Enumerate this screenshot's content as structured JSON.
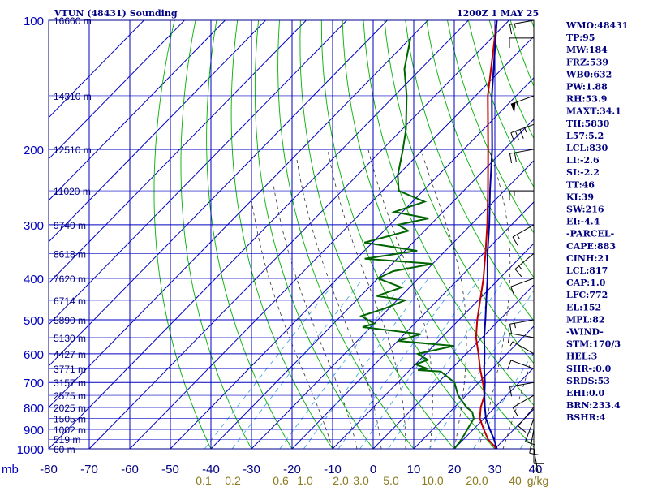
{
  "header": {
    "station": "VTUN (48431) Sounding",
    "time": "1200Z  1 MAY 25"
  },
  "chart_data": {
    "type": "skew-t log-p",
    "title": "VTUN (48431) Sounding",
    "pressure_axis": {
      "unit_label": "mb",
      "ticks": [
        100,
        200,
        300,
        400,
        500,
        600,
        700,
        800,
        900,
        1000
      ],
      "ylim": [
        1000,
        100
      ],
      "scale": "log"
    },
    "temperature_axis": {
      "ticks": [
        -80,
        -70,
        -60,
        -50,
        -40,
        -30,
        -20,
        -10,
        0,
        10,
        20,
        30,
        40
      ],
      "skewed": true
    },
    "height_labels": [
      {
        "p": 100,
        "label": "16660 m"
      },
      {
        "p": 150,
        "label": "14310 m"
      },
      {
        "p": 200,
        "label": "12510 m"
      },
      {
        "p": 250,
        "label": "11020 m"
      },
      {
        "p": 300,
        "label": "9740 m"
      },
      {
        "p": 350,
        "label": "8618 m"
      },
      {
        "p": 400,
        "label": "7620 m"
      },
      {
        "p": 450,
        "label": "6714 m"
      },
      {
        "p": 500,
        "label": "5890 m"
      },
      {
        "p": 550,
        "label": "5130 m"
      },
      {
        "p": 600,
        "label": "4427 m"
      },
      {
        "p": 650,
        "label": "3771 m"
      },
      {
        "p": 700,
        "label": "3157 m"
      },
      {
        "p": 750,
        "label": "2575 m"
      },
      {
        "p": 800,
        "label": "2025 m"
      },
      {
        "p": 850,
        "label": "1505 m"
      },
      {
        "p": 900,
        "label": "1002 m"
      },
      {
        "p": 950,
        "label": "519 m"
      },
      {
        "p": 1000,
        "label": "60 m"
      }
    ],
    "mixing_ratio_labels": [
      "0.1",
      "0.2",
      "0.6",
      "1.0",
      "2.0",
      "3.0",
      "5.0",
      "10.0",
      "20.0",
      "40",
      "g/kg"
    ],
    "series": [
      {
        "type": "temperature",
        "color": "#c00000",
        "points": [
          [
            1000,
            30.5
          ],
          [
            950,
            26
          ],
          [
            900,
            22.5
          ],
          [
            850,
            19
          ],
          [
            800,
            16.5
          ],
          [
            750,
            14.5
          ],
          [
            700,
            11
          ],
          [
            650,
            7
          ],
          [
            600,
            3
          ],
          [
            550,
            -1.5
          ],
          [
            500,
            -5.5
          ],
          [
            450,
            -9.5
          ],
          [
            400,
            -14
          ],
          [
            350,
            -19.5
          ],
          [
            300,
            -26
          ],
          [
            250,
            -34
          ],
          [
            200,
            -44
          ],
          [
            150,
            -57
          ],
          [
            100,
            -73
          ]
        ]
      },
      {
        "type": "dewpoint",
        "color": "#006400",
        "points": [
          [
            1000,
            20
          ],
          [
            950,
            19.5
          ],
          [
            900,
            18.5
          ],
          [
            850,
            17.5
          ],
          [
            820,
            15.5
          ],
          [
            800,
            13
          ],
          [
            750,
            8
          ],
          [
            700,
            4
          ],
          [
            660,
            -2
          ],
          [
            655,
            -8
          ],
          [
            650,
            -6
          ],
          [
            635,
            -10
          ],
          [
            620,
            -8
          ],
          [
            600,
            -12
          ],
          [
            575,
            -5
          ],
          [
            560,
            -20
          ],
          [
            540,
            -16
          ],
          [
            520,
            -32
          ],
          [
            510,
            -30
          ],
          [
            490,
            -35
          ],
          [
            470,
            -31
          ],
          [
            450,
            -28
          ],
          [
            440,
            -36
          ],
          [
            420,
            -32
          ],
          [
            400,
            -40
          ],
          [
            385,
            -38
          ],
          [
            370,
            -30
          ],
          [
            360,
            -48
          ],
          [
            345,
            -37
          ],
          [
            330,
            -52
          ],
          [
            310,
            -44
          ],
          [
            300,
            -48
          ],
          [
            290,
            -42
          ],
          [
            280,
            -52
          ],
          [
            265,
            -47
          ],
          [
            250,
            -56
          ],
          [
            230,
            -60
          ],
          [
            200,
            -65
          ],
          [
            180,
            -69
          ],
          [
            150,
            -77
          ],
          [
            130,
            -84
          ],
          [
            110,
            -90
          ]
        ]
      },
      {
        "type": "parcel",
        "color": "#0000a0",
        "points": [
          [
            1000,
            30.5
          ],
          [
            950,
            27.5
          ],
          [
            900,
            24
          ],
          [
            850,
            20.5
          ],
          [
            800,
            17.5
          ],
          [
            750,
            14.5
          ],
          [
            700,
            11.5
          ],
          [
            650,
            8
          ],
          [
            600,
            4.5
          ],
          [
            550,
            0.5
          ],
          [
            500,
            -3.5
          ],
          [
            450,
            -8
          ],
          [
            400,
            -13
          ],
          [
            350,
            -19
          ],
          [
            300,
            -25.5
          ],
          [
            250,
            -33.5
          ],
          [
            200,
            -43
          ],
          [
            150,
            -56
          ],
          [
            100,
            -73
          ]
        ]
      }
    ],
    "wind_barbs": [
      {
        "p": 100,
        "dir": 260,
        "kt": 15
      },
      {
        "p": 110,
        "dir": 270,
        "kt": 10
      },
      {
        "p": 150,
        "dir": 250,
        "kt": 55
      },
      {
        "p": 175,
        "dir": 250,
        "kt": 35
      },
      {
        "p": 200,
        "dir": 260,
        "kt": 20
      },
      {
        "p": 250,
        "dir": 270,
        "kt": 15
      },
      {
        "p": 300,
        "dir": 240,
        "kt": 15
      },
      {
        "p": 350,
        "dir": 230,
        "kt": 15
      },
      {
        "p": 400,
        "dir": 250,
        "kt": 10
      },
      {
        "p": 500,
        "dir": 260,
        "kt": 15
      },
      {
        "p": 550,
        "dir": 280,
        "kt": 10
      },
      {
        "p": 600,
        "dir": 300,
        "kt": 5
      },
      {
        "p": 650,
        "dir": 290,
        "kt": 10
      },
      {
        "p": 700,
        "dir": 260,
        "kt": 10
      },
      {
        "p": 750,
        "dir": 240,
        "kt": 10
      },
      {
        "p": 800,
        "dir": 220,
        "kt": 10
      },
      {
        "p": 850,
        "dir": 200,
        "kt": 10
      },
      {
        "p": 900,
        "dir": 190,
        "kt": 15
      },
      {
        "p": 950,
        "dir": 180,
        "kt": 10
      },
      {
        "p": 1000,
        "dir": 170,
        "kt": 5
      }
    ]
  },
  "indices": [
    "WMO:48431",
    "TP:95",
    "MW:184",
    "FRZ:539",
    "WB0:632",
    "PW:1.88",
    "RH:53.9",
    "MAXT:34.1",
    "TH:5830",
    "L57:5.2",
    "LCL:830",
    "LI:-2.6",
    "SI:-2.2",
    "TT:46",
    "KI:39",
    "SW:216",
    "EI:-4.4",
    "-PARCEL-",
    "CAPE:883",
    "CINH:21",
    "LCL:817",
    "CAP:1.0",
    "LFC:772",
    "EL:152",
    "MPL:82",
    "-WIND-",
    "STM:170/3",
    "HEL:3",
    "SHR-:0.0",
    "SRDS:53",
    "EHI:0.0",
    "BRN:233.4",
    "BSHR:4"
  ],
  "colors": {
    "frame": "#00008b",
    "grid": "#0000c0",
    "dry_adiabat": "#00b000",
    "moist_adiabat": "#303030",
    "mixing_ratio": "#4aa8e0"
  }
}
